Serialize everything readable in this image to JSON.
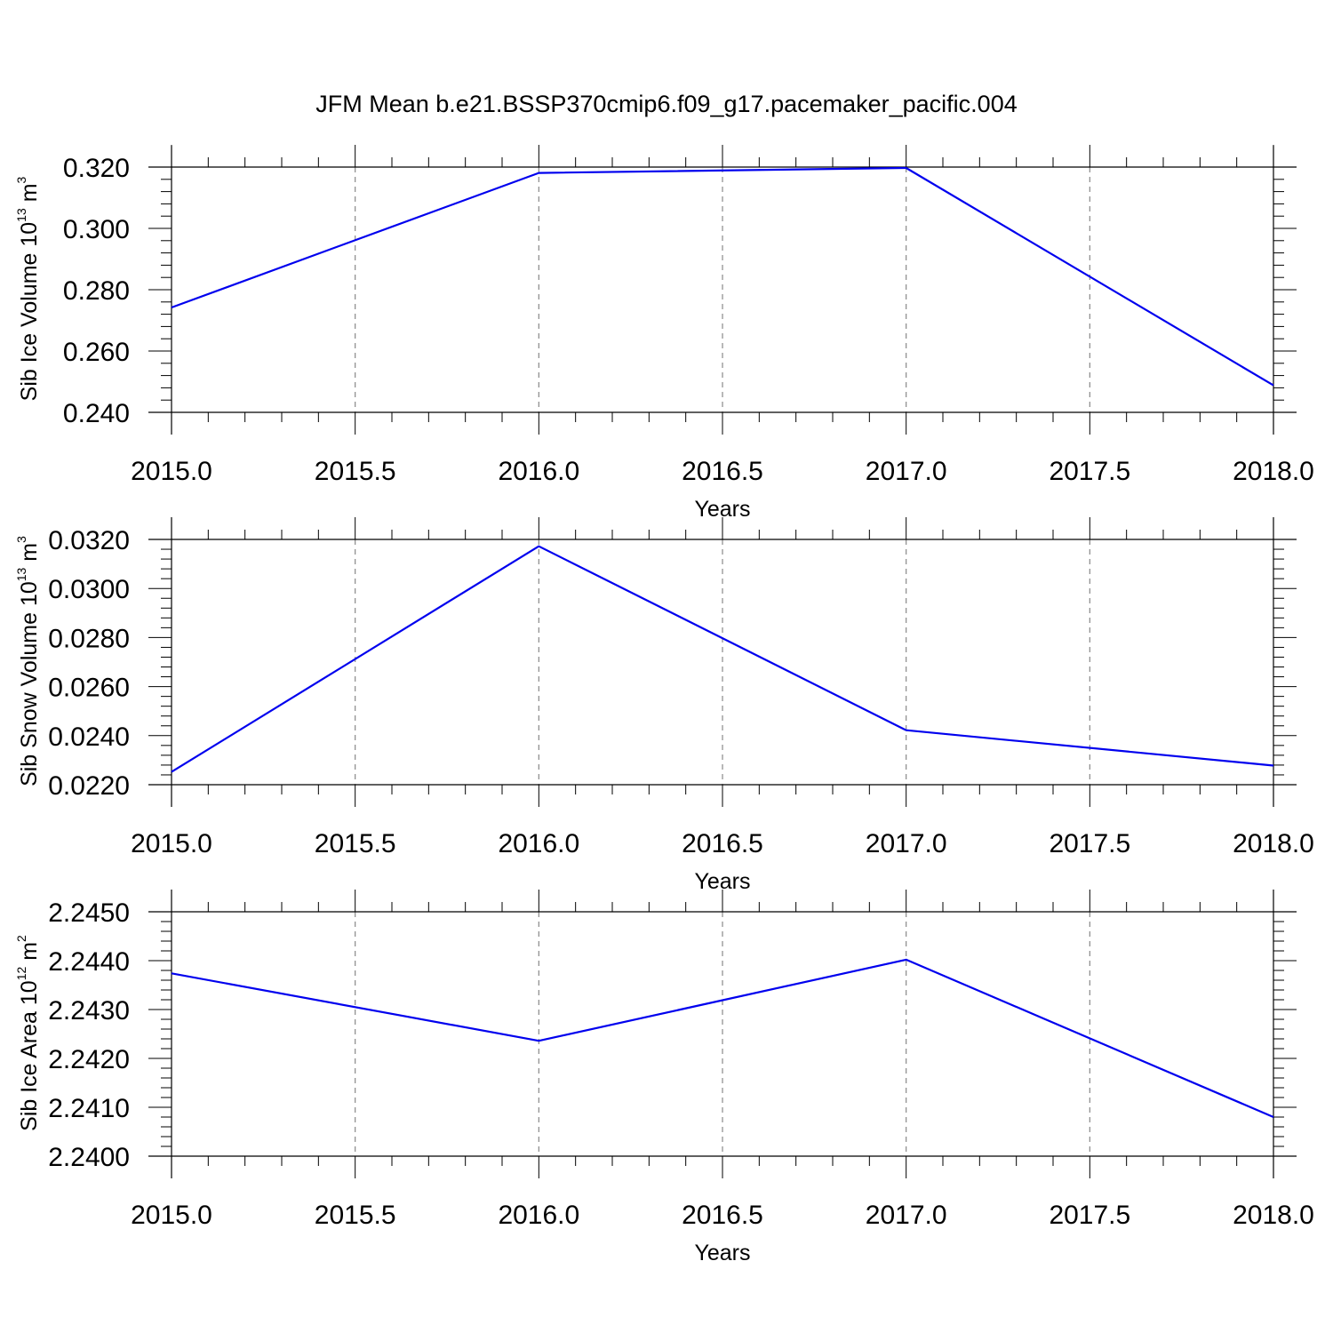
{
  "title": "JFM Mean b.e21.BSSP370cmip6.f09_g17.pacemaker_pacific.004",
  "colors": {
    "line": "#0000ee",
    "axis": "#000000",
    "grid": "#888888"
  },
  "chart_data": [
    {
      "type": "line",
      "xlabel": "Years",
      "ylabel": {
        "text": "Sib Ice Volume 10",
        "exp1": "13",
        "unit": " m",
        "exp2": "3"
      },
      "xlim": [
        2015.0,
        2018.0
      ],
      "ylim": [
        0.24,
        0.32
      ],
      "x_ticks": [
        "2015.0",
        "2015.5",
        "2016.0",
        "2016.5",
        "2017.0",
        "2017.5",
        "2018.0"
      ],
      "y_ticks": [
        "0.240",
        "0.260",
        "0.280",
        "0.300",
        "0.320"
      ],
      "grid": "vertical dashed",
      "series": [
        {
          "x": [
            2015.0,
            2016.0,
            2017.0,
            2018.0
          ],
          "values": [
            0.2742,
            0.3181,
            0.3197,
            0.2488
          ]
        }
      ]
    },
    {
      "type": "line",
      "xlabel": "Years",
      "ylabel": {
        "text": "Sib Snow Volume 10",
        "exp1": "13",
        "unit": " m",
        "exp2": "3"
      },
      "xlim": [
        2015.0,
        2018.0
      ],
      "ylim": [
        0.022,
        0.032
      ],
      "x_ticks": [
        "2015.0",
        "2015.5",
        "2016.0",
        "2016.5",
        "2017.0",
        "2017.5",
        "2018.0"
      ],
      "y_ticks": [
        "0.0220",
        "0.0240",
        "0.0260",
        "0.0280",
        "0.0300",
        "0.0320"
      ],
      "grid": "vertical dashed",
      "series": [
        {
          "x": [
            2015.0,
            2016.0,
            2017.0,
            2018.0
          ],
          "values": [
            0.02252,
            0.03172,
            0.02422,
            0.02278
          ]
        }
      ]
    },
    {
      "type": "line",
      "xlabel": "Years",
      "ylabel": {
        "text": "Sib Ice Area 10",
        "exp1": "12",
        "unit": " m",
        "exp2": "2"
      },
      "xlim": [
        2015.0,
        2018.0
      ],
      "ylim": [
        2.24,
        2.245
      ],
      "x_ticks": [
        "2015.0",
        "2015.5",
        "2016.0",
        "2016.5",
        "2017.0",
        "2017.5",
        "2018.0"
      ],
      "y_ticks": [
        "2.2400",
        "2.2410",
        "2.2420",
        "2.2430",
        "2.2440",
        "2.2450"
      ],
      "grid": "vertical dashed",
      "series": [
        {
          "x": [
            2015.0,
            2016.0,
            2017.0,
            2018.0
          ],
          "values": [
            2.24374,
            2.24236,
            2.24402,
            2.2408
          ]
        }
      ]
    }
  ]
}
